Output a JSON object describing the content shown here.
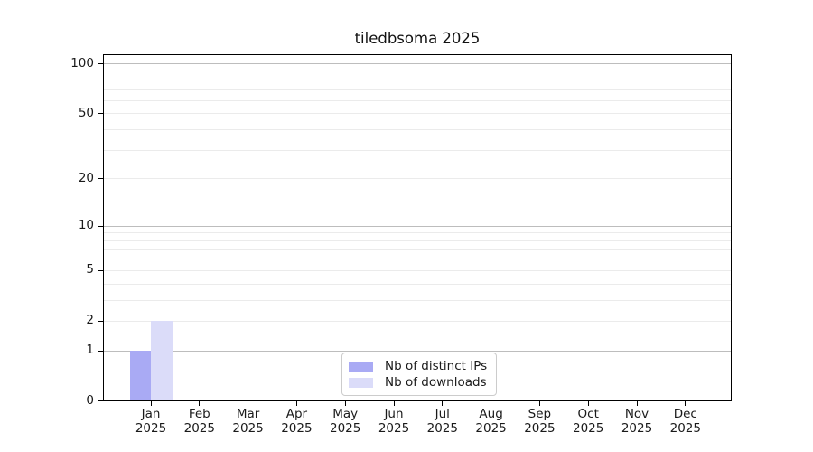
{
  "chart_data": {
    "type": "bar",
    "title": "tiledbsoma 2025",
    "categories": [
      "Jan 2025",
      "Feb 2025",
      "Mar 2025",
      "Apr 2025",
      "May 2025",
      "Jun 2025",
      "Jul 2025",
      "Aug 2025",
      "Sep 2025",
      "Oct 2025",
      "Nov 2025",
      "Dec 2025"
    ],
    "x_axis": {
      "months": [
        "Jan",
        "Feb",
        "Mar",
        "Apr",
        "May",
        "Jun",
        "Jul",
        "Aug",
        "Sep",
        "Oct",
        "Nov",
        "Dec"
      ],
      "year": "2025"
    },
    "series": [
      {
        "name": "Nb of distinct IPs",
        "color": "#a9aaf4",
        "values": [
          1,
          0,
          0,
          0,
          0,
          0,
          0,
          0,
          0,
          0,
          0,
          0
        ]
      },
      {
        "name": "Nb of downloads",
        "color": "#dbdcf9",
        "values": [
          2,
          0,
          0,
          0,
          0,
          0,
          0,
          0,
          0,
          0,
          0,
          0
        ]
      }
    ],
    "y_axis": {
      "scale": "log1p",
      "ylim": [
        0,
        113
      ],
      "tick_values": [
        0,
        1,
        2,
        5,
        10,
        20,
        50,
        100
      ],
      "tick_labels": [
        "0",
        "1",
        "2",
        "5",
        "10",
        "20",
        "50",
        "100"
      ],
      "major_gridlines": [
        1,
        10,
        100
      ],
      "minor_gridlines": [
        2,
        3,
        4,
        5,
        6,
        7,
        8,
        9,
        20,
        30,
        40,
        50,
        60,
        70,
        80,
        90
      ]
    },
    "legend": {
      "position": "lower center",
      "entries": [
        "Nb of distinct IPs",
        "Nb of downloads"
      ]
    }
  },
  "colors": {
    "background": "#ffffff",
    "axis": "#000000",
    "text": "#1a1a1a",
    "grid_major": "#bdbdbd",
    "grid_minor": "#ebebeb",
    "legend_border": "#cccccc"
  }
}
